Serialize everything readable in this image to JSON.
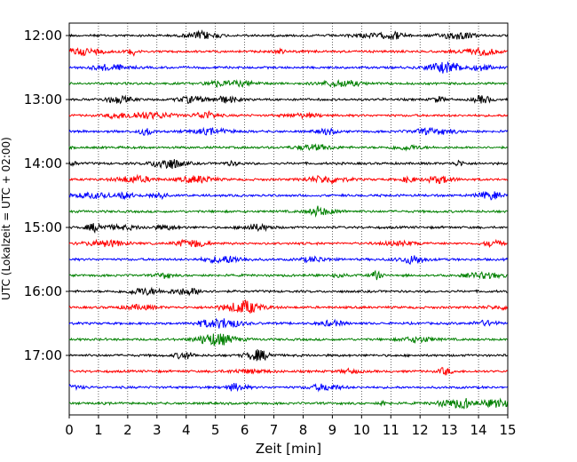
{
  "chart_data": {
    "type": "line",
    "title": "",
    "xlabel": "Zeit  [min]",
    "ylabel": "UTC (Lokalzeit = UTC + 02:00)",
    "xlim": [
      0,
      15
    ],
    "x_ticks": [
      "0",
      "1",
      "2",
      "3",
      "4",
      "5",
      "6",
      "7",
      "8",
      "9",
      "10",
      "11",
      "12",
      "13",
      "14",
      "15"
    ],
    "y_ticks": [
      "12:00",
      "13:00",
      "14:00",
      "15:00",
      "16:00",
      "17:00"
    ],
    "trace_start": "12:00",
    "trace_end": "17:45",
    "trace_interval_min": 15,
    "trace_colors": [
      "#000000",
      "#ff0000",
      "#0000ff",
      "#008000"
    ],
    "grid": "vertical-dotted",
    "legend": "none"
  }
}
